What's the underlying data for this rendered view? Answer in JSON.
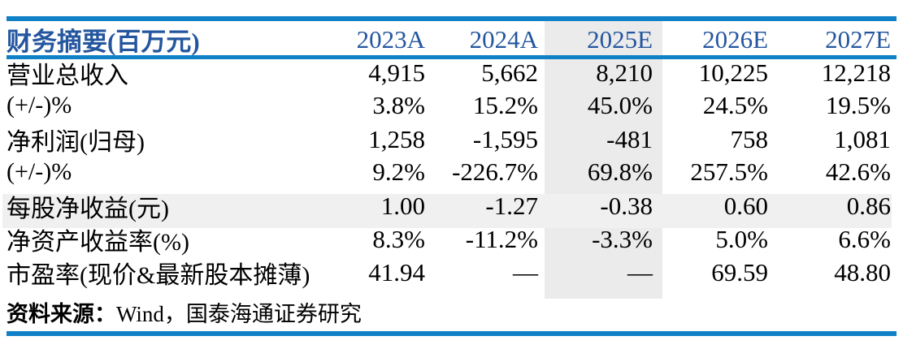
{
  "table": {
    "title": "财务摘要(百万元)",
    "columns": [
      "2023A",
      "2024A",
      "2025E",
      "2026E",
      "2027E"
    ],
    "highlight_column": "2025E",
    "highlight_column_index": 2,
    "rows": [
      {
        "label": "营业总收入",
        "values": [
          "4,915",
          "5,662",
          "8,210",
          "10,225",
          "12,218"
        ]
      },
      {
        "label": "(+/-)%",
        "values": [
          "3.8%",
          "15.2%",
          "45.0%",
          "24.5%",
          "19.5%"
        ]
      },
      {
        "label": "净利润(归母)",
        "values": [
          "1,258",
          "-1,595",
          "-481",
          "758",
          "1,081"
        ]
      },
      {
        "label": "(+/-)%",
        "values": [
          "9.2%",
          "-226.7%",
          "69.8%",
          "257.5%",
          "42.6%"
        ]
      },
      {
        "label": "每股净收益(元)",
        "values": [
          "1.00",
          "-1.27",
          "-0.38",
          "0.60",
          "0.86"
        ],
        "highlight_row": true
      },
      {
        "label": "净资产收益率(%)",
        "values": [
          "8.3%",
          "-11.2%",
          "-3.3%",
          "5.0%",
          "6.6%"
        ]
      },
      {
        "label": "市盈率(现价&最新股本摊薄)",
        "values": [
          "41.94",
          "—",
          "—",
          "69.59",
          "48.80"
        ]
      }
    ]
  },
  "footer": {
    "source_label": "资料来源：",
    "source_text": "Wind，国泰海通证券研究"
  },
  "colors": {
    "rule_blue": "#1081c6",
    "header_text_blue": "#24569f",
    "column_highlight_gray": "#ebebeb",
    "row_highlight_gray": "#f0f0f0"
  }
}
